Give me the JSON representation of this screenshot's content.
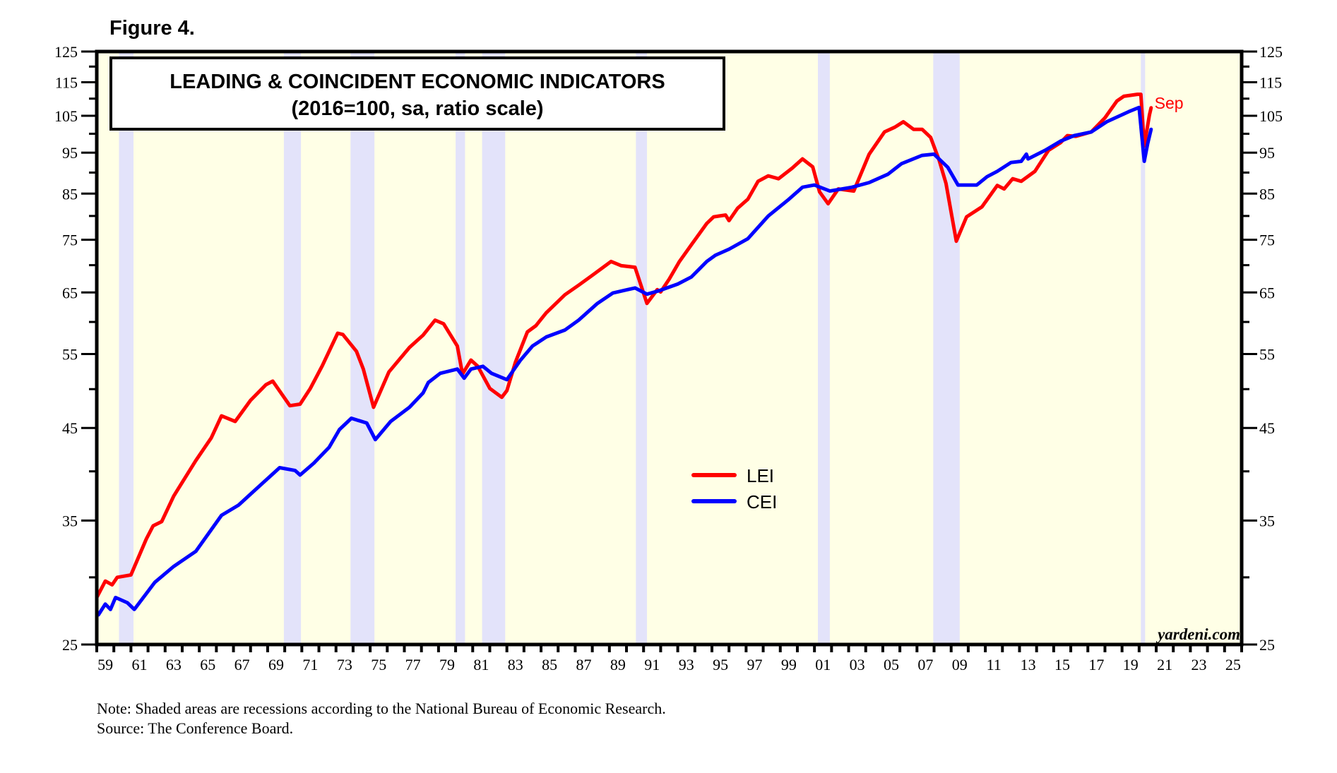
{
  "figure_label": "Figure 4.",
  "notes": {
    "note": "Note: Shaded areas are recessions according to the National Bureau of Economic Research.",
    "source": "Source: The Conference Board."
  },
  "chart_data": {
    "type": "line",
    "title": "LEADING & COINCIDENT ECONOMIC INDICATORS",
    "subtitle": "(2016=100, sa, ratio scale)",
    "xlabel": "",
    "ylabel": "",
    "yscale": "log",
    "ylim": [
      25,
      125
    ],
    "xlim": [
      1959,
      2026
    ],
    "y_major_ticks": [
      25,
      35,
      45,
      55,
      65,
      75,
      85,
      95,
      105,
      115,
      125
    ],
    "y_minor_ticks": [
      30,
      40,
      50,
      60,
      70,
      80,
      90,
      100,
      110,
      120
    ],
    "x_tick_labels": [
      "59",
      "61",
      "63",
      "65",
      "67",
      "69",
      "71",
      "73",
      "75",
      "77",
      "79",
      "81",
      "83",
      "85",
      "87",
      "89",
      "91",
      "93",
      "95",
      "97",
      "99",
      "01",
      "03",
      "05",
      "07",
      "09",
      "11",
      "13",
      "15",
      "17",
      "19",
      "21",
      "23",
      "25"
    ],
    "x_tick_label_years": [
      1959,
      1961,
      1963,
      1965,
      1967,
      1969,
      1971,
      1973,
      1975,
      1977,
      1979,
      1981,
      1983,
      1985,
      1987,
      1989,
      1991,
      1993,
      1995,
      1997,
      1999,
      2001,
      2003,
      2005,
      2007,
      2009,
      2011,
      2013,
      2015,
      2017,
      2019,
      2021,
      2023,
      2025
    ],
    "grid": false,
    "legend_position": "center",
    "colors": {
      "LEI": "#ff0000",
      "CEI": "#0000ff",
      "plot_bg": "#ffffe6",
      "recession": "#e3e3fa"
    },
    "recessions": [
      [
        1960.3,
        1961.15
      ],
      [
        1969.95,
        1970.95
      ],
      [
        1973.85,
        1975.25
      ],
      [
        1980.0,
        1980.55
      ],
      [
        1981.55,
        1982.9
      ],
      [
        1990.55,
        1991.2
      ],
      [
        2001.2,
        2001.9
      ],
      [
        2007.95,
        2009.5
      ],
      [
        2020.1,
        2020.35
      ]
    ],
    "annotations": [
      {
        "text": "Sep",
        "color": "#ff0000",
        "x": 2020.9,
        "y": 107
      }
    ],
    "watermark": "yardeni.com",
    "series": [
      {
        "name": "LEI",
        "points": [
          [
            1959.0,
            28.4
          ],
          [
            1959.5,
            29.7
          ],
          [
            1959.9,
            29.4
          ],
          [
            1960.2,
            30.0
          ],
          [
            1961.0,
            30.2
          ],
          [
            1961.9,
            33.3
          ],
          [
            1962.3,
            34.5
          ],
          [
            1962.8,
            34.9
          ],
          [
            1963.5,
            37.4
          ],
          [
            1964.8,
            41.2
          ],
          [
            1965.7,
            43.8
          ],
          [
            1966.3,
            46.5
          ],
          [
            1967.1,
            45.8
          ],
          [
            1968.0,
            48.5
          ],
          [
            1968.9,
            50.6
          ],
          [
            1969.3,
            51.1
          ],
          [
            1970.3,
            47.8
          ],
          [
            1970.9,
            48.0
          ],
          [
            1971.5,
            50.1
          ],
          [
            1972.2,
            53.3
          ],
          [
            1973.1,
            58.2
          ],
          [
            1973.4,
            58.0
          ],
          [
            1974.2,
            55.4
          ],
          [
            1974.6,
            52.8
          ],
          [
            1975.2,
            47.6
          ],
          [
            1976.1,
            52.4
          ],
          [
            1977.3,
            56.0
          ],
          [
            1978.1,
            57.9
          ],
          [
            1978.8,
            60.3
          ],
          [
            1979.3,
            59.7
          ],
          [
            1980.1,
            56.2
          ],
          [
            1980.4,
            52.1
          ],
          [
            1980.9,
            54.1
          ],
          [
            1981.3,
            53.2
          ],
          [
            1982.0,
            50.1
          ],
          [
            1982.7,
            48.9
          ],
          [
            1983.0,
            49.8
          ],
          [
            1983.5,
            53.8
          ],
          [
            1984.2,
            58.4
          ],
          [
            1984.7,
            59.4
          ],
          [
            1985.3,
            61.5
          ],
          [
            1986.4,
            64.6
          ],
          [
            1987.2,
            66.3
          ],
          [
            1988.0,
            68.1
          ],
          [
            1989.1,
            70.7
          ],
          [
            1989.7,
            69.9
          ],
          [
            1990.5,
            69.6
          ],
          [
            1991.2,
            63.1
          ],
          [
            1991.8,
            65.5
          ],
          [
            1992.0,
            65.1
          ],
          [
            1992.5,
            67.4
          ],
          [
            1993.1,
            70.7
          ],
          [
            1993.8,
            74.0
          ],
          [
            1994.7,
            78.4
          ],
          [
            1995.1,
            79.8
          ],
          [
            1995.8,
            80.2
          ],
          [
            1996.0,
            79.0
          ],
          [
            1996.5,
            81.7
          ],
          [
            1997.1,
            83.7
          ],
          [
            1997.7,
            87.9
          ],
          [
            1998.3,
            89.2
          ],
          [
            1998.9,
            88.5
          ],
          [
            1999.7,
            91.1
          ],
          [
            2000.3,
            93.4
          ],
          [
            2000.9,
            91.4
          ],
          [
            2001.3,
            85.4
          ],
          [
            2001.8,
            82.7
          ],
          [
            2002.4,
            86.1
          ],
          [
            2003.3,
            85.6
          ],
          [
            2004.2,
            94.6
          ],
          [
            2005.1,
            100.5
          ],
          [
            2005.7,
            101.8
          ],
          [
            2006.2,
            103.3
          ],
          [
            2006.8,
            101.2
          ],
          [
            2007.3,
            101.2
          ],
          [
            2007.8,
            99.0
          ],
          [
            2008.3,
            93.0
          ],
          [
            2008.7,
            87.4
          ],
          [
            2009.3,
            74.7
          ],
          [
            2009.9,
            79.8
          ],
          [
            2010.8,
            82.0
          ],
          [
            2011.7,
            86.9
          ],
          [
            2012.1,
            86.1
          ],
          [
            2012.6,
            88.5
          ],
          [
            2013.1,
            87.9
          ],
          [
            2013.9,
            90.3
          ],
          [
            2014.7,
            95.6
          ],
          [
            2015.4,
            97.6
          ],
          [
            2015.8,
            99.5
          ],
          [
            2016.3,
            99.3
          ],
          [
            2017.2,
            100.5
          ],
          [
            2018.0,
            104.4
          ],
          [
            2018.7,
            109.3
          ],
          [
            2019.1,
            110.7
          ],
          [
            2019.9,
            111.3
          ],
          [
            2020.1,
            111.3
          ],
          [
            2020.3,
            96.7
          ],
          [
            2020.6,
            105.2
          ],
          [
            2020.7,
            107.3
          ]
        ]
      },
      {
        "name": "CEI",
        "points": [
          [
            1959.1,
            27.1
          ],
          [
            1959.5,
            27.9
          ],
          [
            1959.8,
            27.5
          ],
          [
            1960.1,
            28.4
          ],
          [
            1960.8,
            28.0
          ],
          [
            1961.2,
            27.5
          ],
          [
            1962.4,
            29.6
          ],
          [
            1963.5,
            30.9
          ],
          [
            1964.8,
            32.2
          ],
          [
            1966.3,
            35.5
          ],
          [
            1967.3,
            36.5
          ],
          [
            1968.0,
            37.6
          ],
          [
            1969.7,
            40.4
          ],
          [
            1970.6,
            40.1
          ],
          [
            1970.9,
            39.6
          ],
          [
            1971.7,
            40.9
          ],
          [
            1972.6,
            42.7
          ],
          [
            1973.2,
            44.8
          ],
          [
            1973.9,
            46.2
          ],
          [
            1974.8,
            45.6
          ],
          [
            1975.3,
            43.6
          ],
          [
            1976.2,
            45.8
          ],
          [
            1977.3,
            47.6
          ],
          [
            1978.1,
            49.5
          ],
          [
            1978.4,
            50.9
          ],
          [
            1979.1,
            52.2
          ],
          [
            1980.1,
            52.8
          ],
          [
            1980.5,
            51.5
          ],
          [
            1980.9,
            52.8
          ],
          [
            1981.6,
            53.2
          ],
          [
            1982.1,
            52.2
          ],
          [
            1983.0,
            51.3
          ],
          [
            1983.8,
            54.1
          ],
          [
            1984.5,
            56.2
          ],
          [
            1985.3,
            57.6
          ],
          [
            1986.4,
            58.7
          ],
          [
            1987.2,
            60.3
          ],
          [
            1988.3,
            63.1
          ],
          [
            1989.2,
            64.9
          ],
          [
            1990.5,
            65.8
          ],
          [
            1991.2,
            64.7
          ],
          [
            1991.9,
            65.3
          ],
          [
            1993.0,
            66.5
          ],
          [
            1993.8,
            67.8
          ],
          [
            1994.7,
            70.7
          ],
          [
            1995.2,
            71.9
          ],
          [
            1996.0,
            73.1
          ],
          [
            1997.1,
            75.2
          ],
          [
            1998.3,
            80.0
          ],
          [
            1999.5,
            83.7
          ],
          [
            2000.3,
            86.5
          ],
          [
            2001.0,
            87.0
          ],
          [
            2001.9,
            85.6
          ],
          [
            2003.2,
            86.5
          ],
          [
            2004.2,
            87.6
          ],
          [
            2005.3,
            89.6
          ],
          [
            2006.1,
            92.2
          ],
          [
            2007.3,
            94.3
          ],
          [
            2008.0,
            94.6
          ],
          [
            2008.8,
            91.3
          ],
          [
            2009.4,
            87.0
          ],
          [
            2009.9,
            87.0
          ],
          [
            2010.5,
            87.0
          ],
          [
            2011.1,
            89.0
          ],
          [
            2011.7,
            90.3
          ],
          [
            2012.5,
            92.5
          ],
          [
            2013.1,
            92.8
          ],
          [
            2013.4,
            94.6
          ],
          [
            2013.5,
            93.4
          ],
          [
            2014.5,
            95.6
          ],
          [
            2015.4,
            98.0
          ],
          [
            2016.2,
            99.5
          ],
          [
            2017.2,
            100.5
          ],
          [
            2018.1,
            103.3
          ],
          [
            2019.4,
            106.2
          ],
          [
            2020.0,
            107.4
          ],
          [
            2020.3,
            92.8
          ],
          [
            2020.5,
            97.3
          ],
          [
            2020.7,
            101.2
          ]
        ]
      }
    ]
  }
}
